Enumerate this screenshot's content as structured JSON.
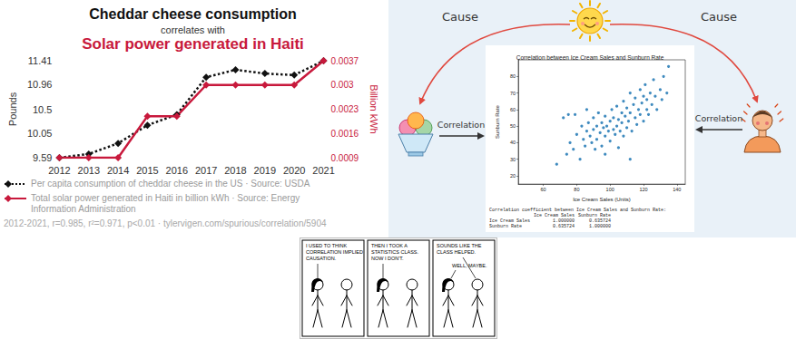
{
  "chart_data": [
    {
      "type": "line",
      "title": "Cheddar cheese consumption",
      "subtitle": [
        "correlates with",
        "Solar power generated in Haiti"
      ],
      "categories": [
        "2012",
        "2013",
        "2014",
        "2015",
        "2016",
        "2017",
        "2018",
        "2019",
        "2020",
        "2021"
      ],
      "ylabel": "Pounds",
      "y2label": "Billion kWh",
      "series": [
        {
          "name": "Per capita consumption of cheddar cheese in the US · Source: USDA",
          "color": "#111111",
          "marker": "diamond",
          "line_style": "dotted",
          "values": [
            9.59,
            9.66,
            9.86,
            10.2,
            10.4,
            11.1,
            11.24,
            11.17,
            11.14,
            11.41
          ]
        },
        {
          "name": "Total solar power generated in Haiti in billion kWh · Source: Energy Information Administration",
          "color": "#c8193c",
          "marker": "diamond",
          "line_style": "solid",
          "axis": "y2",
          "values": [
            0.0009,
            0.0009,
            0.0009,
            0.0021,
            0.0021,
            0.003,
            0.003,
            0.003,
            0.003,
            0.0037
          ]
        }
      ],
      "ylim": [
        9.59,
        11.41
      ],
      "yticks": [
        9.59,
        10.05,
        10.5,
        10.96,
        11.41
      ],
      "y2lim": [
        0.0009,
        0.0037
      ],
      "y2ticks": [
        0.0009,
        0.0016,
        0.0023,
        0.003,
        0.0037
      ],
      "grid": false,
      "legend": "bottom",
      "annotations": [
        "2012-2021, r=0.985, r²=0.971, p<0.01 · tylervigen.com/spurious/correlation/5904"
      ]
    },
    {
      "type": "scatter",
      "title": "Correlation between Ice Cream Sales and Sunburn Rate",
      "xlabel": "Ice Cream Sales (Units)",
      "ylabel": "Sunburn Rate",
      "x": [
        68,
        72,
        75,
        74,
        76,
        78,
        80,
        82,
        83,
        84,
        85,
        86,
        87,
        88,
        89,
        90,
        90,
        91,
        92,
        92,
        93,
        94,
        95,
        95,
        96,
        97,
        97,
        98,
        99,
        100,
        100,
        101,
        102,
        102,
        103,
        104,
        104,
        105,
        105,
        106,
        107,
        107,
        108,
        108,
        109,
        110,
        110,
        111,
        112,
        112,
        113,
        114,
        115,
        115,
        116,
        117,
        118,
        118,
        119,
        120,
        120,
        121,
        122,
        122,
        123,
        124,
        125,
        126,
        127,
        128,
        130,
        131,
        132,
        134,
        135,
        112,
        97,
        86,
        79
      ],
      "values": [
        27,
        55,
        57,
        33,
        40,
        36,
        45,
        30,
        50,
        42,
        38,
        47,
        52,
        44,
        40,
        48,
        55,
        36,
        50,
        42,
        58,
        46,
        52,
        38,
        49,
        44,
        56,
        50,
        47,
        53,
        41,
        60,
        48,
        55,
        45,
        62,
        50,
        54,
        37,
        47,
        58,
        52,
        65,
        44,
        56,
        49,
        61,
        53,
        70,
        58,
        47,
        63,
        55,
        67,
        51,
        60,
        72,
        57,
        64,
        53,
        68,
        75,
        60,
        66,
        57,
        70,
        63,
        78,
        68,
        60,
        72,
        66,
        80,
        70,
        86,
        30,
        33,
        60,
        57
      ],
      "color": "#1f77b4",
      "marker": "circle",
      "xlim": [
        45,
        145
      ],
      "xticks": [
        60,
        80,
        100,
        120,
        140
      ],
      "ylim": [
        15,
        90
      ],
      "yticks": [
        20,
        30,
        40,
        50,
        60,
        70,
        80
      ],
      "grid": false
    }
  ],
  "correlation_table": {
    "caption": "Correlation coefficient between Ice Cream Sales and Sunburn Rate:",
    "columns": [
      "Ice Cream Sales",
      "Sunburn Rate"
    ],
    "rows": [
      [
        "Ice Cream Sales",
        "1.000000",
        "0.635724"
      ],
      [
        "Sunburn Rate",
        "0.635724",
        "1.000000"
      ]
    ]
  },
  "diagram": {
    "arrows": [
      {
        "label": "Cause"
      },
      {
        "label": "Cause"
      },
      {
        "label": "Correlation"
      },
      {
        "label": "Correlation"
      }
    ]
  },
  "comic": {
    "panels": [
      {
        "speech": [
          [
            "I USED TO THINK",
            "CORRELATION IMPLIED",
            "CAUSATION."
          ]
        ]
      },
      {
        "speech": [
          [
            "THEN I TOOK A",
            "STATISTICS CLASS.",
            "NOW I DON'T."
          ]
        ]
      },
      {
        "speech": [
          [
            "SOUNDS LIKE THE",
            "CLASS HELPED."
          ],
          [
            "WELL, MAYBE."
          ]
        ]
      }
    ]
  }
}
